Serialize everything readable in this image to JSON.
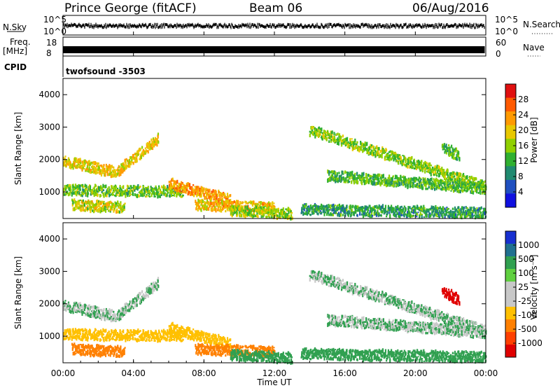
{
  "header": {
    "station": "Prince George (fitACF)",
    "beam": "Beam 06",
    "date": "06/Aug/2016"
  },
  "strips": {
    "nsky_label": "N.Sky",
    "nsky_ticks": [
      "10^5",
      "10^0"
    ],
    "nsearch_label": "N.Search",
    "nsearch_ticks": [
      "10^5",
      "10^0"
    ],
    "freq_label_line1": "Freq.",
    "freq_label_line2": "[MHz]",
    "freq_ticks": [
      "18",
      "8"
    ],
    "nave_label": "Nave",
    "nave_ticks": [
      "60",
      "0"
    ],
    "cpid_label": "CPID",
    "cpid_value": "twofsound -3503"
  },
  "panels": {
    "power": {
      "ylabel": "Slant Range [km]",
      "yticks": [
        "4000",
        "3000",
        "2000",
        "1000"
      ],
      "colorbar_label": "Power [dB]",
      "colorbar_ticks": [
        "28",
        "24",
        "20",
        "16",
        "12",
        "8",
        "4"
      ],
      "colorbar_colors": [
        "#e01010",
        "#ff5a00",
        "#ff9a00",
        "#e8c800",
        "#90d000",
        "#30b030",
        "#208a70",
        "#2050c0",
        "#1010e0"
      ]
    },
    "velocity": {
      "ylabel": "Slant Range [km]",
      "yticks": [
        "4000",
        "3000",
        "2000",
        "1000"
      ],
      "colorbar_label": "Velocity [m s⁻¹]",
      "colorbar_ticks": [
        "1000",
        "500",
        "100",
        "25",
        "-25",
        "-100",
        "-500",
        "-1000"
      ],
      "colorbar_colors": [
        "#1830d0",
        "#207090",
        "#30a050",
        "#60d040",
        "#c8c8c8",
        "#c8c8c8",
        "#ffc000",
        "#ff8000",
        "#ff4000",
        "#e00000"
      ]
    }
  },
  "xaxis": {
    "label": "Time UT",
    "ticks": [
      "00:00",
      "04:00",
      "08:00",
      "12:00",
      "16:00",
      "20:00",
      "00:00"
    ]
  },
  "chart_data": {
    "type": "heatmap",
    "title": "Prince George (fitACF)",
    "xlabel": "Time UT",
    "ylabel": "Slant Range [km]",
    "xlim": [
      0,
      24
    ],
    "ylim": [
      180,
      4500
    ],
    "power_scale_db": [
      0,
      32
    ],
    "velocity_scale_ms": [
      -1000,
      1000
    ],
    "echo_bands": [
      {
        "t": [
          0.0,
          3.0
        ],
        "r": [
          1950,
          1600
        ],
        "power": 20,
        "velocity": 25
      },
      {
        "t": [
          3.0,
          5.4
        ],
        "r": [
          1600,
          2650
        ],
        "power": 21,
        "velocity": 25
      },
      {
        "t": [
          0.0,
          6.8
        ],
        "r": [
          1050,
          1000
        ],
        "power": 14,
        "velocity": -60
      },
      {
        "t": [
          6.0,
          9.5
        ],
        "r": [
          1250,
          750
        ],
        "power": 24,
        "velocity": -80
      },
      {
        "t": [
          7.5,
          12.0
        ],
        "r": [
          600,
          500
        ],
        "power": 22,
        "velocity": -150
      },
      {
        "t": [
          0.5,
          3.5
        ],
        "r": [
          600,
          500
        ],
        "power": 18,
        "velocity": -300
      },
      {
        "t": [
          9.5,
          13.0
        ],
        "r": [
          400,
          330
        ],
        "power": 16,
        "velocity": 80
      },
      {
        "t": [
          14.0,
          24.0
        ],
        "r": [
          2900,
          1150
        ],
        "power": 15,
        "velocity": 25
      },
      {
        "t": [
          15.0,
          24.0
        ],
        "r": [
          1500,
          1100
        ],
        "power": 13,
        "velocity": 25
      },
      {
        "t": [
          13.5,
          24.0
        ],
        "r": [
          450,
          350
        ],
        "power": 10,
        "velocity": 60
      },
      {
        "t": [
          21.5,
          22.5
        ],
        "r": [
          2400,
          2100
        ],
        "power": 13,
        "velocity": -600
      }
    ]
  }
}
